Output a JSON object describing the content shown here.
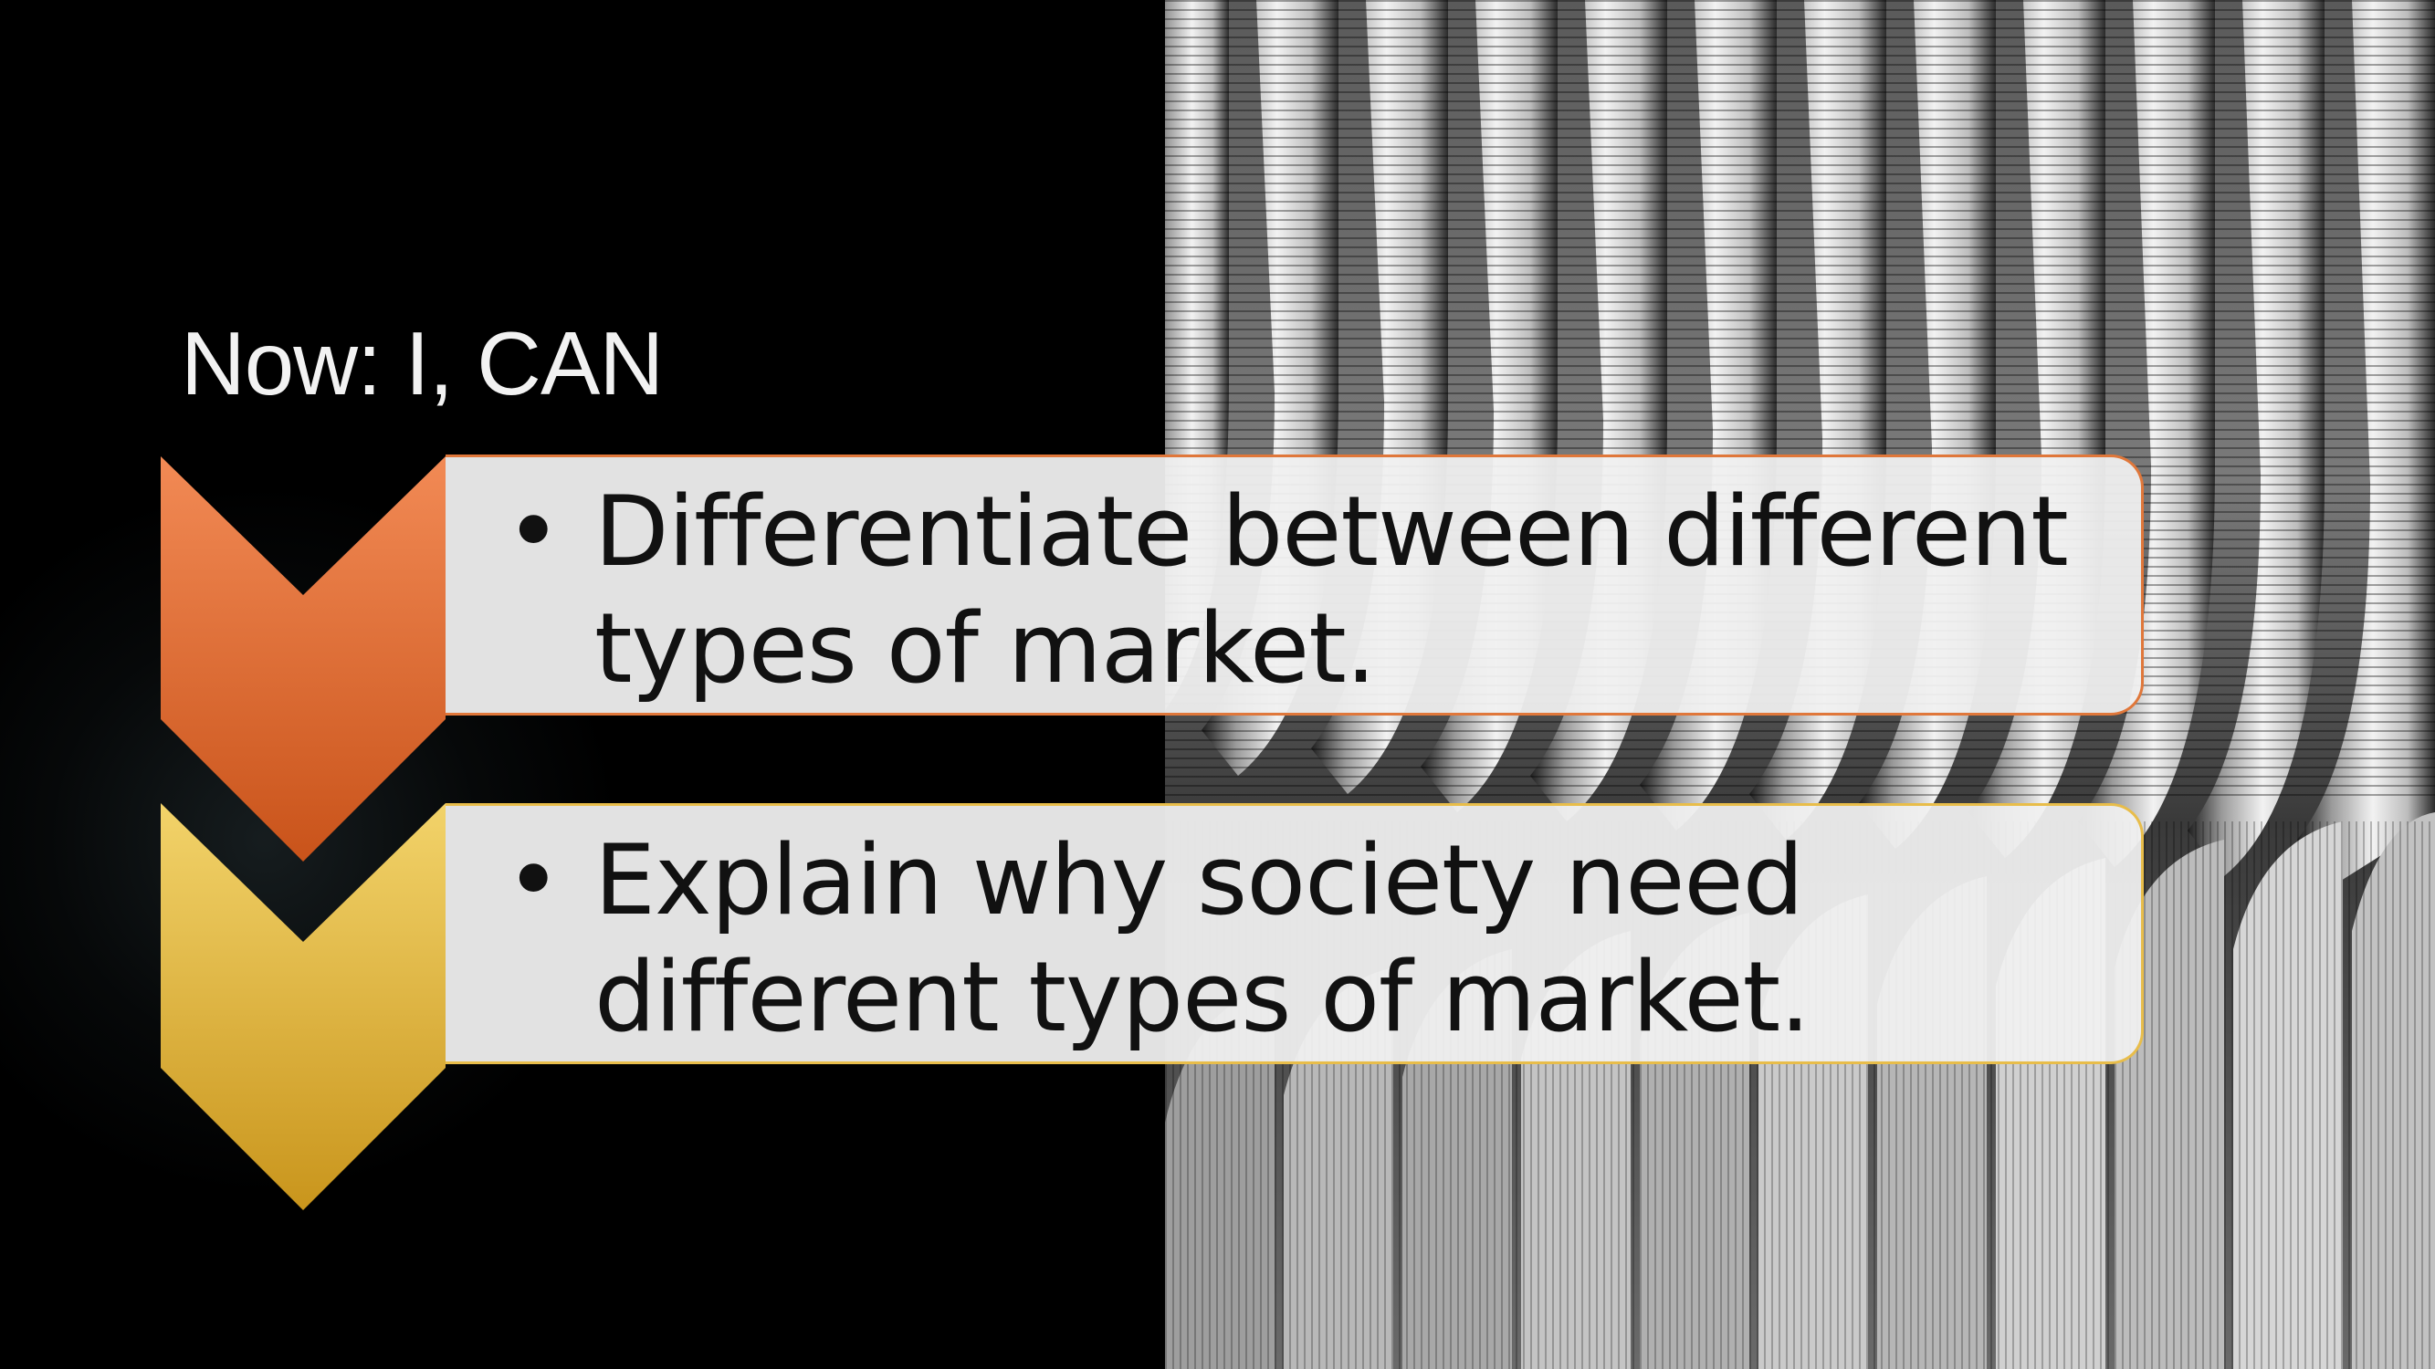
{
  "slide": {
    "title": "Now: I, CAN",
    "items": [
      {
        "bullet": "•",
        "text": "Differentiate between different types of market.",
        "accent": "#e8773a"
      },
      {
        "bullet": "•",
        "text": "Explain why society need different types of market.",
        "accent": "#e8c04a"
      }
    ]
  },
  "colors": {
    "background": "#000000",
    "orange_top": "#f28a55",
    "orange_bottom": "#c9531a",
    "gold_top": "#f2d36a",
    "gold_bottom": "#c9951c",
    "box_fill": "#efefef",
    "text": "#111111",
    "title_text": "#f2f2f2"
  },
  "icons": [
    "chevron-down-icon",
    "chevron-down-icon"
  ]
}
